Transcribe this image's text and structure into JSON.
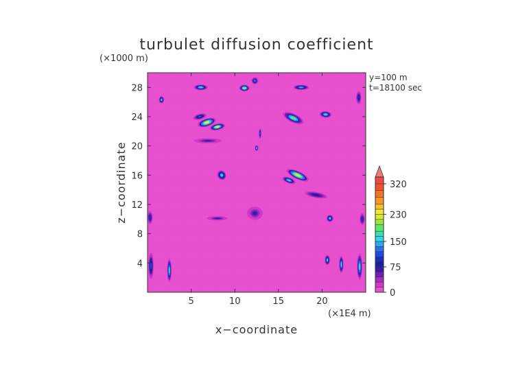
{
  "chart_data": {
    "type": "heatmap",
    "title": "turbulet diffusion coefficient",
    "xlabel": "x−coordinate",
    "ylabel": "z−coordinate",
    "x_unit": "(×1E4 m)",
    "y_unit": "(×1000 m)",
    "annotations": [
      "y=100 m",
      "t=18100 sec"
    ],
    "xlim": [
      0,
      25
    ],
    "ylim": [
      0,
      30
    ],
    "x_ticks": [
      5,
      10,
      15,
      20
    ],
    "y_ticks": [
      4,
      8,
      12,
      16,
      20,
      24,
      28
    ],
    "colorbar": {
      "tick_values": [
        0,
        75,
        150,
        230,
        320
      ],
      "tick_labels": [
        "0",
        "75",
        "150",
        "230",
        "320"
      ],
      "extend": "max",
      "min": 0,
      "max": 340,
      "levels": [
        {
          "value": 0,
          "color": "#e84fd0"
        },
        {
          "value": 15,
          "color": "#d238c8"
        },
        {
          "value": 30,
          "color": "#a22fbf"
        },
        {
          "value": 45,
          "color": "#7320b8"
        },
        {
          "value": 60,
          "color": "#3c1aa8"
        },
        {
          "value": 75,
          "color": "#1a1f9a"
        },
        {
          "value": 90,
          "color": "#1a2cc4"
        },
        {
          "value": 105,
          "color": "#1f4ae0"
        },
        {
          "value": 120,
          "color": "#2e72ea"
        },
        {
          "value": 135,
          "color": "#2fa8f0"
        },
        {
          "value": 150,
          "color": "#2fd7e8"
        },
        {
          "value": 165,
          "color": "#36e0b0"
        },
        {
          "value": 180,
          "color": "#5be86e"
        },
        {
          "value": 200,
          "color": "#9be83a"
        },
        {
          "value": 215,
          "color": "#d8ea2a"
        },
        {
          "value": 230,
          "color": "#f5e72a"
        },
        {
          "value": 245,
          "color": "#f7c22a"
        },
        {
          "value": 260,
          "color": "#f79a22"
        },
        {
          "value": 280,
          "color": "#f47522"
        },
        {
          "value": 300,
          "color": "#f2522a"
        },
        {
          "value": 320,
          "color": "#f24848"
        },
        {
          "value": 340,
          "color": "#f28a8a"
        }
      ],
      "extend_color": "#f07a7a"
    },
    "background_color": "#e84fd0",
    "features": [
      {
        "x": 6.8,
        "z": 23.2,
        "sx": 1.1,
        "sz": 0.55,
        "v": 230,
        "rot": -18
      },
      {
        "x": 8.0,
        "z": 22.6,
        "sx": 0.9,
        "sz": 0.45,
        "v": 215,
        "rot": -12
      },
      {
        "x": 6.0,
        "z": 24.0,
        "sx": 0.8,
        "sz": 0.4,
        "v": 110,
        "rot": -15
      },
      {
        "x": 16.7,
        "z": 23.8,
        "sx": 1.3,
        "sz": 0.6,
        "v": 180,
        "rot": 25
      },
      {
        "x": 20.4,
        "z": 24.3,
        "sx": 0.7,
        "sz": 0.45,
        "v": 160,
        "rot": 5
      },
      {
        "x": 17.2,
        "z": 16.0,
        "sx": 1.4,
        "sz": 0.55,
        "v": 225,
        "rot": 25
      },
      {
        "x": 16.2,
        "z": 15.3,
        "sx": 0.8,
        "sz": 0.4,
        "v": 160,
        "rot": 20
      },
      {
        "x": 8.5,
        "z": 16.0,
        "sx": 0.5,
        "sz": 0.7,
        "v": 150,
        "rot": -30
      },
      {
        "x": 6.1,
        "z": 28.0,
        "sx": 0.8,
        "sz": 0.4,
        "v": 160,
        "rot": 0
      },
      {
        "x": 11.1,
        "z": 27.9,
        "sx": 0.6,
        "sz": 0.45,
        "v": 200,
        "rot": 0
      },
      {
        "x": 17.6,
        "z": 28.0,
        "sx": 0.9,
        "sz": 0.35,
        "v": 140,
        "rot": 0
      },
      {
        "x": 12.3,
        "z": 28.9,
        "sx": 0.4,
        "sz": 0.5,
        "v": 130,
        "rot": 0
      },
      {
        "x": 1.6,
        "z": 26.3,
        "sx": 0.3,
        "sz": 0.5,
        "v": 150,
        "rot": 0
      },
      {
        "x": 12.9,
        "z": 21.7,
        "sx": 0.15,
        "sz": 0.7,
        "v": 120,
        "rot": 0
      },
      {
        "x": 12.5,
        "z": 19.7,
        "sx": 0.2,
        "sz": 0.4,
        "v": 160,
        "rot": 0
      },
      {
        "x": 12.3,
        "z": 10.8,
        "sx": 0.9,
        "sz": 0.9,
        "v": 70,
        "rot": 0
      },
      {
        "x": 8.0,
        "z": 10.1,
        "sx": 1.2,
        "sz": 0.3,
        "v": 65,
        "rot": 0
      },
      {
        "x": 20.9,
        "z": 10.1,
        "sx": 0.4,
        "sz": 0.5,
        "v": 150,
        "rot": 0
      },
      {
        "x": 19.3,
        "z": 13.3,
        "sx": 1.3,
        "sz": 0.4,
        "v": 75,
        "rot": 10
      },
      {
        "x": 6.9,
        "z": 20.7,
        "sx": 1.6,
        "sz": 0.35,
        "v": 60,
        "rot": 0
      },
      {
        "x": 20.6,
        "z": 4.4,
        "sx": 0.3,
        "sz": 0.7,
        "v": 150,
        "rot": 0
      },
      {
        "x": 22.2,
        "z": 3.8,
        "sx": 0.25,
        "sz": 1.2,
        "v": 160,
        "rot": 0
      },
      {
        "x": 24.3,
        "z": 3.5,
        "sx": 0.3,
        "sz": 1.8,
        "v": 170,
        "rot": 0
      },
      {
        "x": 0.4,
        "z": 3.6,
        "sx": 0.3,
        "sz": 1.8,
        "v": 110,
        "rot": 0
      },
      {
        "x": 2.5,
        "z": 3.0,
        "sx": 0.25,
        "sz": 1.6,
        "v": 170,
        "rot": 0
      },
      {
        "x": 0.3,
        "z": 10.2,
        "sx": 0.3,
        "sz": 0.9,
        "v": 90,
        "rot": 0
      },
      {
        "x": 24.6,
        "z": 10.0,
        "sx": 0.3,
        "sz": 0.8,
        "v": 90,
        "rot": 0
      },
      {
        "x": 24.2,
        "z": 26.6,
        "sx": 0.3,
        "sz": 0.9,
        "v": 100,
        "rot": 0
      }
    ]
  }
}
